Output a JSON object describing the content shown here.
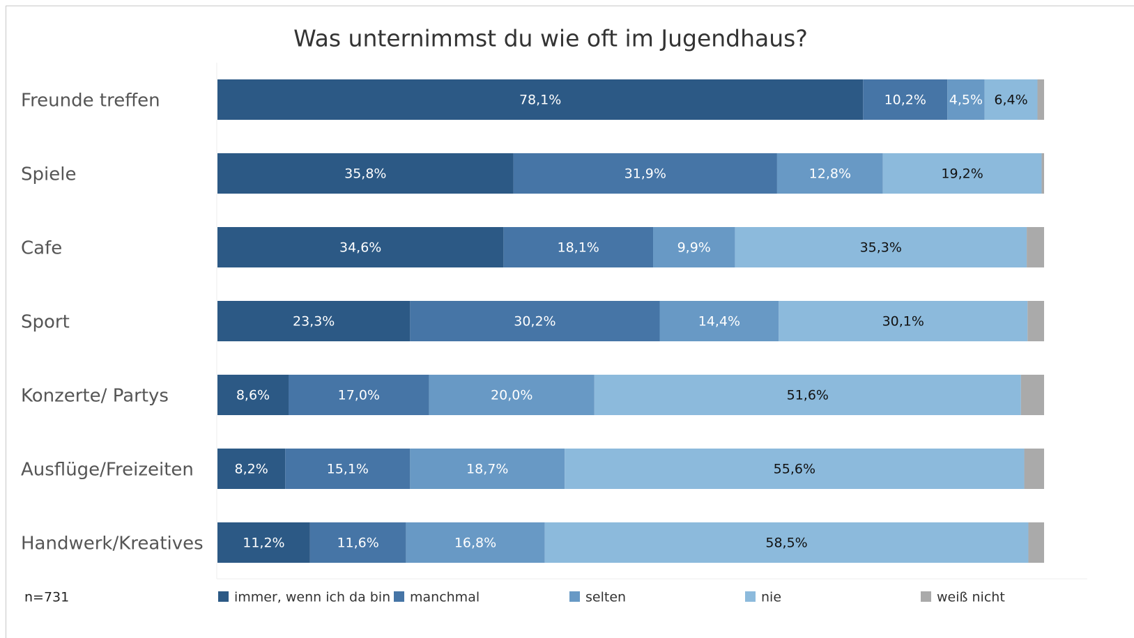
{
  "chart_data": {
    "type": "stacked_bar_horizontal",
    "title": "Was unternimmst du wie oft im Jugendhaus?",
    "note": "n=731",
    "categories": [
      "Freunde treffen",
      "Spiele",
      "Cafe",
      "Sport",
      "Konzerte/ Partys",
      "Ausflüge/Freizeiten",
      "Handwerk/Kreatives"
    ],
    "xlim": [
      0,
      100
    ],
    "legend": "bottom",
    "series": [
      {
        "name": "immer, wenn ich da bin",
        "color": "#2c5985",
        "values": [
          78.1,
          35.8,
          34.6,
          23.3,
          8.6,
          8.2,
          11.2
        ],
        "value_labels": [
          "78,1%",
          "35,8%",
          "34,6%",
          "23,3%",
          "8,6%",
          "8,2%",
          "11,2%"
        ]
      },
      {
        "name": "manchmal",
        "color": "#4675a6",
        "values": [
          10.2,
          31.9,
          18.1,
          30.2,
          17.0,
          15.1,
          11.6
        ],
        "value_labels": [
          "10,2%",
          "31,9%",
          "18,1%",
          "30,2%",
          "17,0%",
          "15,1%",
          "11,6%"
        ]
      },
      {
        "name": "selten",
        "color": "#6899c5",
        "values": [
          4.5,
          12.8,
          9.9,
          14.4,
          20.0,
          18.7,
          16.8
        ],
        "value_labels": [
          "4,5%",
          "12,8%",
          "9,9%",
          "14,4%",
          "20,0%",
          "18,7%",
          "16,8%"
        ]
      },
      {
        "name": "nie",
        "color": "#8cbadc",
        "values": [
          6.4,
          19.2,
          35.3,
          30.1,
          51.6,
          55.6,
          58.5
        ],
        "value_labels": [
          "6,4%",
          "19,2%",
          "35,3%",
          "30,1%",
          "51,6%",
          "55,6%",
          "58,5%"
        ]
      },
      {
        "name": "weiß nicht",
        "color": "#aaaaaa",
        "values": [
          0.8,
          0.3,
          2.1,
          2.0,
          2.8,
          2.4,
          1.9
        ]
      }
    ]
  }
}
